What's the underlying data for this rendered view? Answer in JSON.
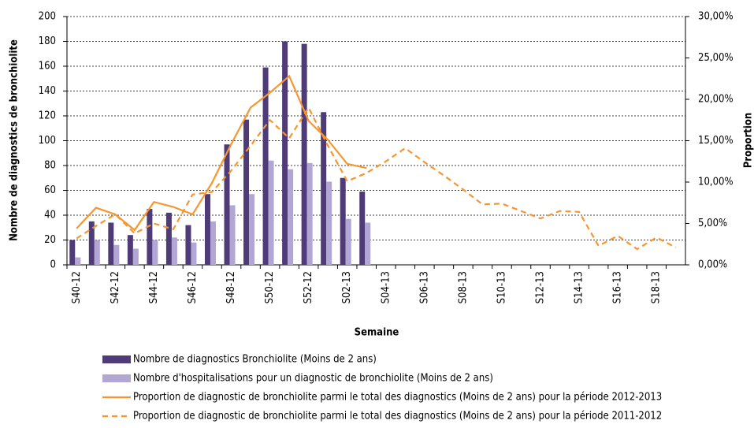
{
  "chart_data": {
    "type": "bar",
    "x_label": "Semaine",
    "y_label": "Nombre de diagnostics de bronchiolite",
    "y2_label": "Proportion",
    "categories": [
      "S40-12",
      null,
      "S42-12",
      null,
      "S44-12",
      null,
      "S46-12",
      null,
      "S48-12",
      null,
      "S50-12",
      null,
      "S52-12",
      null,
      "S02-13",
      null,
      "S04-13",
      null,
      "S06-13",
      null,
      "S08-13",
      null,
      "S10-13",
      null,
      "S12-13",
      null,
      "S14-13",
      null,
      "S16-13",
      null,
      "S18-13",
      null
    ],
    "series": [
      {
        "name": "Nombre de diagnostics Bronchiolite (Moins de 2 ans)",
        "type": "bar",
        "color": "#4f3b78",
        "values": [
          20,
          35,
          34,
          24,
          45,
          42,
          32,
          57,
          97,
          117,
          159,
          180,
          178,
          123,
          70,
          59,
          null,
          null,
          null,
          null,
          null,
          null,
          null,
          null,
          null,
          null,
          null,
          null,
          null,
          null,
          null,
          null
        ]
      },
      {
        "name": "Nombre d'hospitalisations pour un diagnostic de bronchiolite (Moins de 2 ans)",
        "type": "bar",
        "color": "#b2a6d4",
        "values": [
          6,
          20,
          16,
          13,
          20,
          22,
          18,
          35,
          48,
          57,
          84,
          77,
          82,
          67,
          37,
          34,
          null,
          null,
          null,
          null,
          null,
          null,
          null,
          null,
          null,
          null,
          null,
          null,
          null,
          null,
          null,
          null
        ]
      },
      {
        "name": "Proportion de diagnostic de bronchiolite parmi le total des diagnostics (Moins de 2 ans) pour la période 2012-2013",
        "type": "line",
        "axis": "y2",
        "color": "#f7962f",
        "dashed": false,
        "values": [
          4.4,
          6.9,
          6.1,
          4.2,
          7.6,
          7.0,
          6.1,
          9.9,
          14.6,
          19.0,
          20.8,
          22.8,
          17.4,
          15.1,
          12.2,
          11.7,
          null,
          null,
          null,
          null,
          null,
          null,
          null,
          null,
          null,
          null,
          null,
          null,
          null,
          null,
          null,
          null
        ]
      },
      {
        "name": "Proportion de diagnostic de bronchiolite parmi le total des diagnostics (Moins de 2 ans) pour la période 2011-2012",
        "type": "line",
        "axis": "y2",
        "color": "#f7962f",
        "dashed": true,
        "values": [
          3.2,
          4.7,
          6.1,
          3.8,
          5.0,
          4.3,
          8.5,
          8.8,
          11.4,
          14.4,
          17.5,
          15.3,
          19.0,
          14.4,
          10.1,
          11.1,
          12.5,
          14.1,
          12.4,
          10.8,
          9.1,
          7.3,
          7.4,
          6.5,
          5.6,
          6.5,
          6.4,
          2.3,
          3.5,
          1.9,
          3.3,
          2.1
        ]
      }
    ],
    "ylim": [
      0,
      200
    ],
    "yticks": [
      0,
      20,
      40,
      60,
      80,
      100,
      120,
      140,
      160,
      180,
      200
    ],
    "y2lim": [
      0,
      30
    ],
    "y2ticks": [
      {
        "value": 0,
        "label": "0,00%"
      },
      {
        "value": 5,
        "label": "5,00%"
      },
      {
        "value": 10,
        "label": "10,00%"
      },
      {
        "value": 15,
        "label": "15,00%"
      },
      {
        "value": 20,
        "label": "20,00%"
      },
      {
        "value": 25,
        "label": "25,00%"
      },
      {
        "value": 30,
        "label": "30,00%"
      }
    ],
    "grid": true
  }
}
